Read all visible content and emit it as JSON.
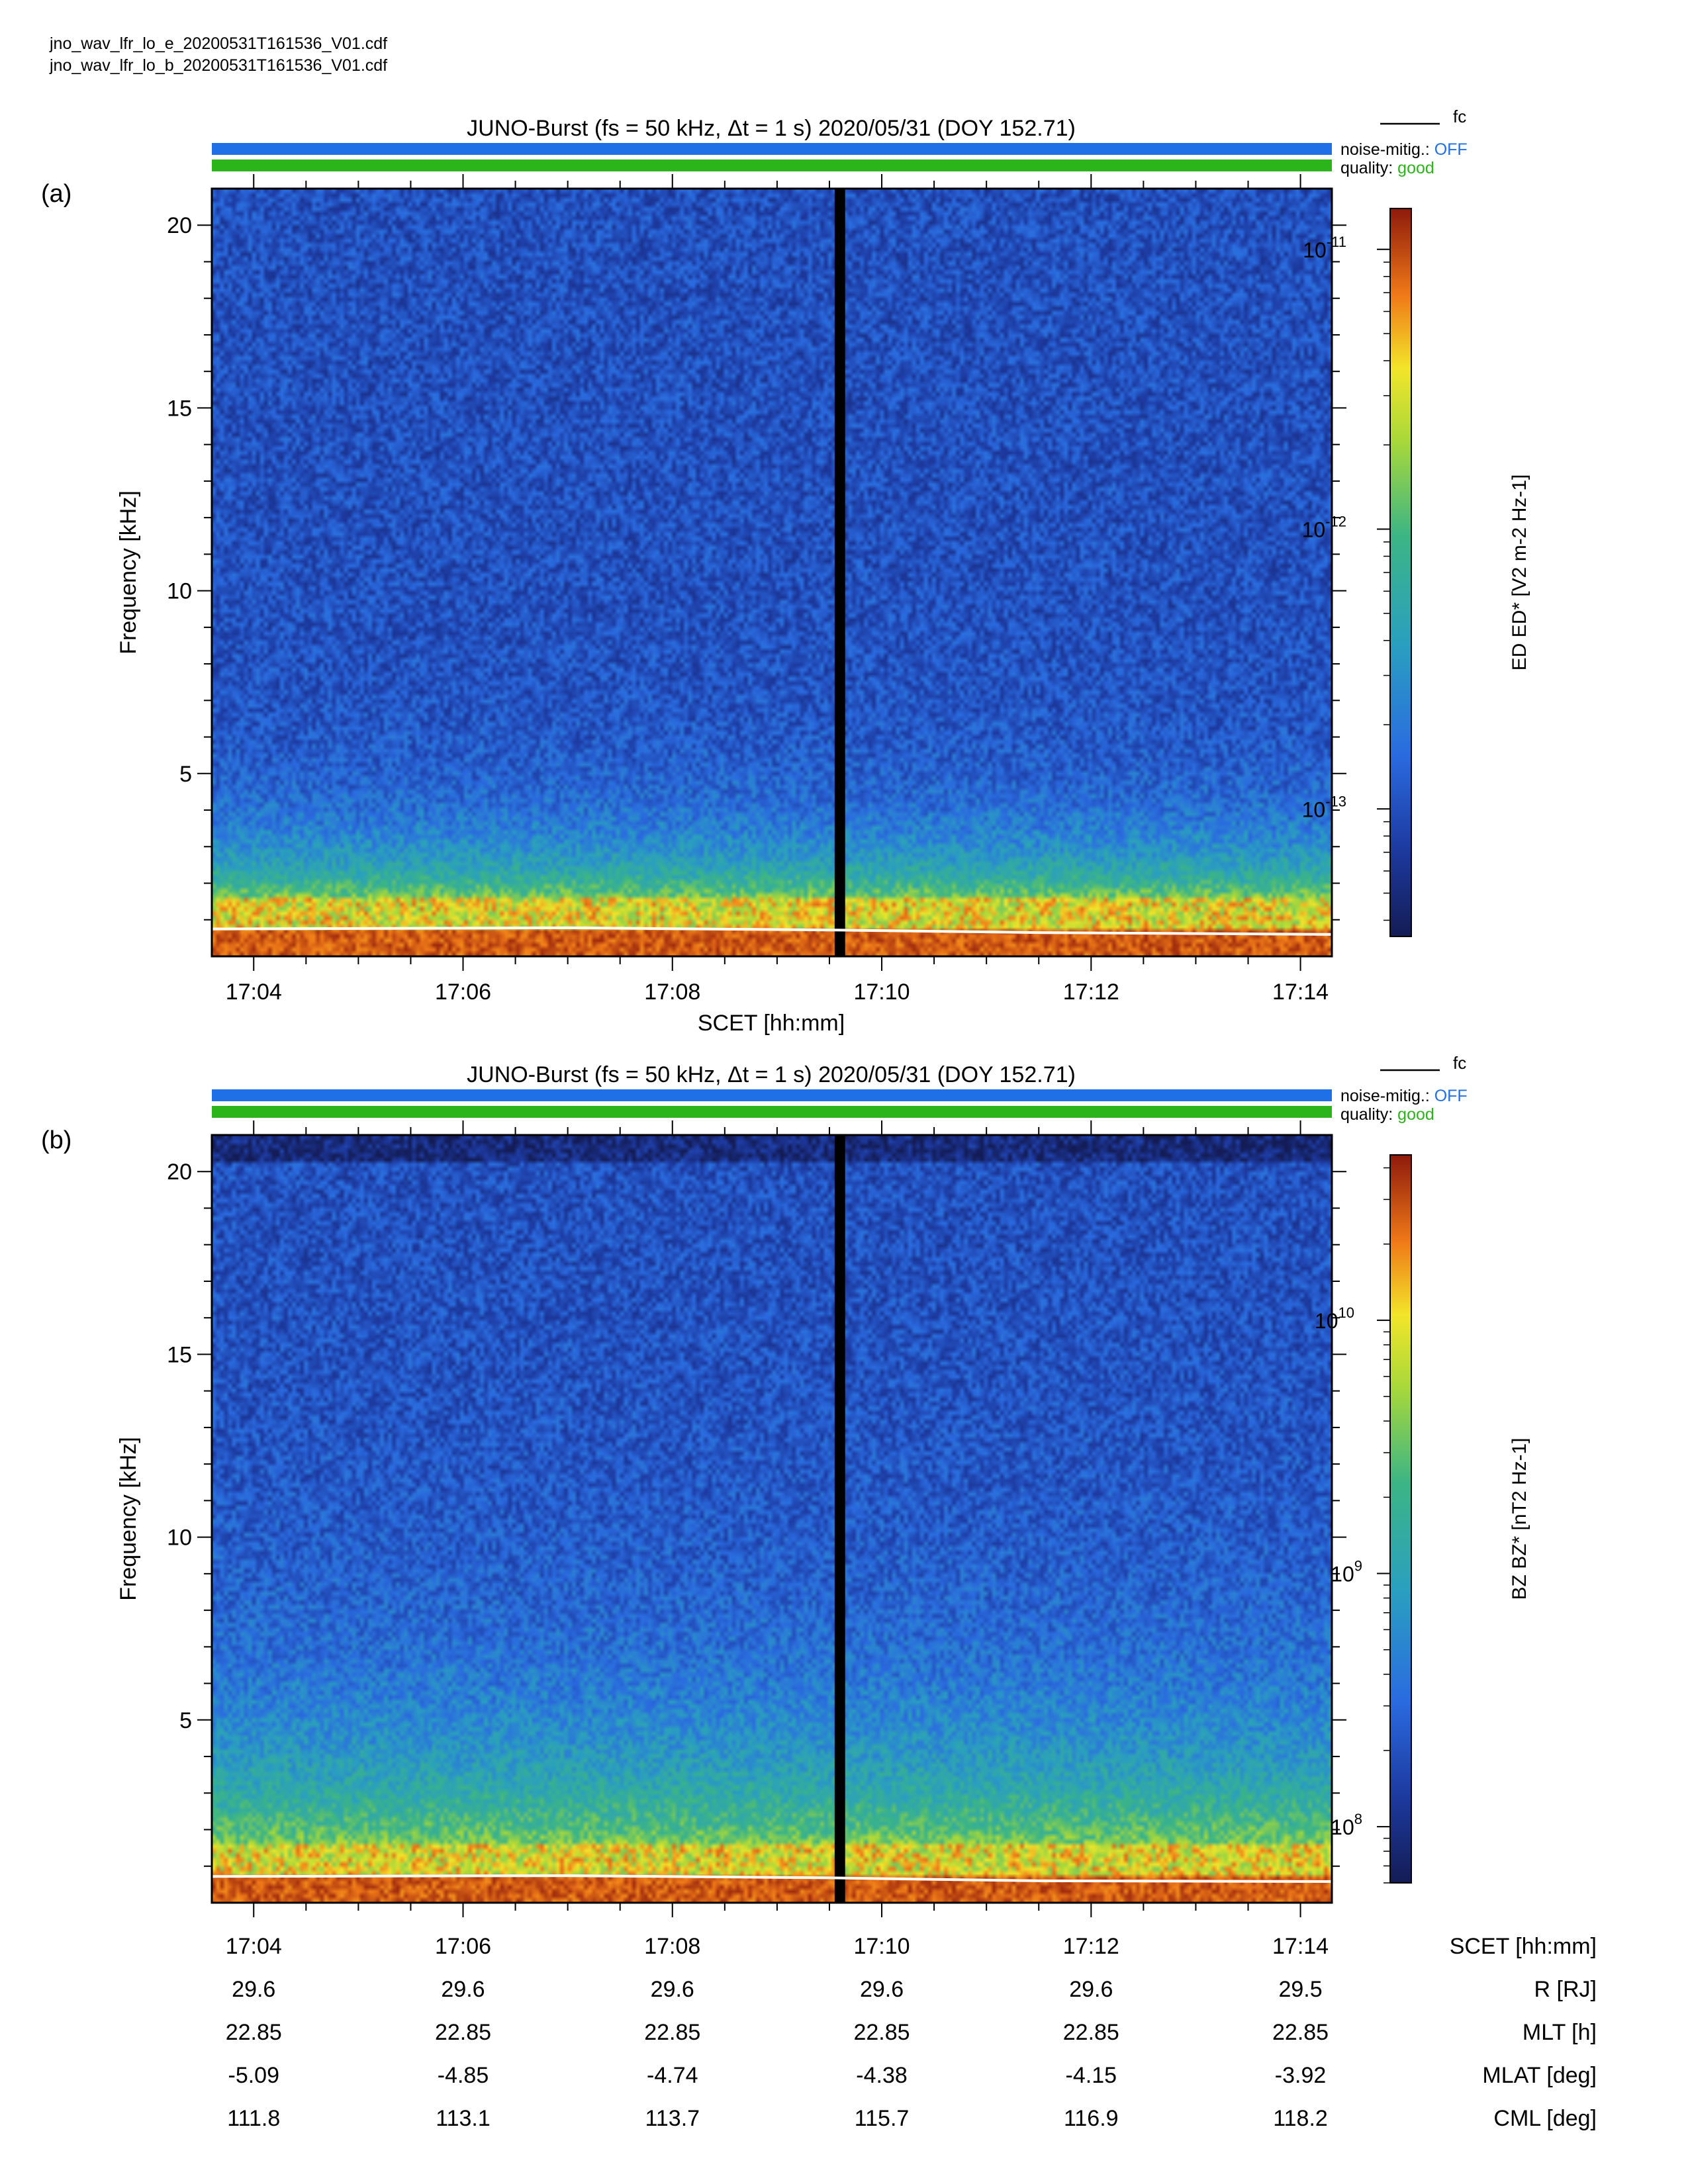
{
  "filenames": [
    "jno_wav_lfr_lo_e_20200531T161536_V01.cdf",
    "jno_wav_lfr_lo_b_20200531T161536_V01.cdf"
  ],
  "colors": {
    "noise_bar": "#1f6fe6",
    "quality_bar": "#2bb51a",
    "noise_text": "#1f6fe6",
    "quality_text": "#2bb51a",
    "gap": "#000000",
    "fc_line": "#ffffff"
  },
  "chart_data": [
    {
      "type": "heatmap",
      "panel_label": "(a)",
      "title": "JUNO-Burst (f_s = 50 kHz, Δt = 1 s)  2020/05/31 (DOY 152.71)",
      "legend": {
        "line_label": "f_c",
        "placement": "top-right"
      },
      "status": {
        "noise_label": "noise-mitig.:",
        "noise_value": "OFF",
        "quality_label": "quality:",
        "quality_value": "good"
      },
      "ylabel": "Frequency [kHz]",
      "xlabel": "SCET [hh:mm]",
      "ylim": [
        0,
        21
      ],
      "yticks": [
        5,
        10,
        15,
        20
      ],
      "xlim_minutes": [
        1023.6,
        1034.3
      ],
      "xticks": [
        "17:04",
        "17:06",
        "17:08",
        "17:10",
        "17:12",
        "17:14"
      ],
      "data_gap_minutes": [
        1029.55,
        1029.65
      ],
      "fc_line_khz": [
        [
          1023.6,
          0.75
        ],
        [
          1027.0,
          0.78
        ],
        [
          1029.5,
          0.72
        ],
        [
          1031.5,
          0.65
        ],
        [
          1034.3,
          0.6
        ]
      ],
      "colorbar": {
        "label": "E_D E_D* [V^2 m^-2 Hz^-1]",
        "scale": "log",
        "range": [
          3.5e-14,
          1.4e-11
        ],
        "ticks": [
          "10^-11",
          "10^-12",
          "10^-13"
        ]
      }
    },
    {
      "type": "heatmap",
      "panel_label": "(b)",
      "title": "JUNO-Burst (f_s = 50 kHz, Δt = 1 s)  2020/05/31 (DOY 152.71)",
      "legend": {
        "line_label": "f_c",
        "placement": "top-right"
      },
      "status": {
        "noise_label": "noise-mitig.:",
        "noise_value": "OFF",
        "quality_label": "quality:",
        "quality_value": "good"
      },
      "ylabel": "Frequency [kHz]",
      "ylim": [
        0,
        21
      ],
      "yticks": [
        5,
        10,
        15,
        20
      ],
      "xlim_minutes": [
        1023.6,
        1034.3
      ],
      "xticks": [
        "17:04",
        "17:06",
        "17:08",
        "17:10",
        "17:12",
        "17:14"
      ],
      "data_gap_minutes": [
        1029.55,
        1029.65
      ],
      "fc_line_khz": [
        [
          1023.6,
          0.72
        ],
        [
          1027.0,
          0.74
        ],
        [
          1029.5,
          0.68
        ],
        [
          1031.5,
          0.6
        ],
        [
          1034.3,
          0.58
        ]
      ],
      "colorbar": {
        "label": "B_Z B_Z* [nT^2 Hz^-1]",
        "scale": "log",
        "range": [
          60000000.0,
          45000000000.0
        ],
        "ticks": [
          "10^10",
          "10^9",
          "10^8"
        ]
      }
    }
  ],
  "ephemeris": {
    "rows": [
      {
        "label": "SCET [hh:mm]",
        "values": [
          "17:04",
          "17:06",
          "17:08",
          "17:10",
          "17:12",
          "17:14"
        ]
      },
      {
        "label": "R [R_J]",
        "values": [
          "29.6",
          "29.6",
          "29.6",
          "29.6",
          "29.6",
          "29.5"
        ]
      },
      {
        "label": "MLT [h]",
        "values": [
          "22.85",
          "22.85",
          "22.85",
          "22.85",
          "22.85",
          "22.85"
        ]
      },
      {
        "label": "MLAT [deg]",
        "values": [
          "-5.09",
          "-4.85",
          "-4.74",
          "-4.38",
          "-4.15",
          "-3.92"
        ]
      },
      {
        "label": "CML [deg]",
        "values": [
          "111.8",
          "113.1",
          "113.7",
          "115.7",
          "116.9",
          "118.2"
        ]
      }
    ]
  }
}
